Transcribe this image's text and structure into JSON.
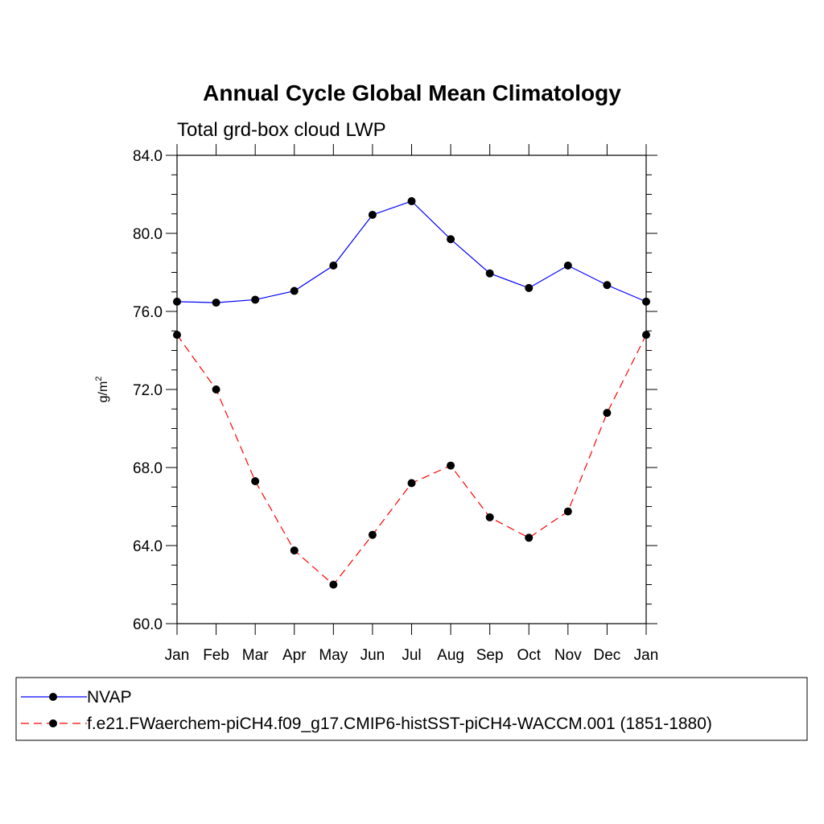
{
  "chart_data": {
    "type": "line",
    "title": "Annual Cycle Global Mean Climatology",
    "subtitle": "Total grd-box cloud LWP",
    "xlabel": "",
    "ylabel": "g/m",
    "ylabel_superscript": "2",
    "categories": [
      "Jan",
      "Feb",
      "Mar",
      "Apr",
      "May",
      "Jun",
      "Jul",
      "Aug",
      "Sep",
      "Oct",
      "Nov",
      "Dec",
      "Jan"
    ],
    "ylim": [
      60,
      84
    ],
    "yticks": [
      "60.0",
      "64.0",
      "68.0",
      "72.0",
      "76.0",
      "80.0",
      "84.0"
    ],
    "ytick_values": [
      60,
      64,
      68,
      72,
      76,
      80,
      84
    ],
    "grid": false,
    "legend_position": "bottom",
    "series": [
      {
        "name": "NVAP",
        "color": "#0000ff",
        "dash": "solid",
        "values": [
          76.5,
          76.45,
          76.6,
          77.05,
          78.35,
          80.95,
          81.65,
          79.7,
          77.95,
          77.2,
          78.35,
          77.35,
          76.5
        ]
      },
      {
        "name": "f.e21.FWaerchem-piCH4.f09_g17.CMIP6-histSST-piCH4-WACCM.001 (1851-1880)",
        "color": "#ff0000",
        "dash": "dashed",
        "values": [
          74.8,
          72.0,
          67.3,
          63.75,
          62.0,
          64.55,
          67.2,
          68.1,
          65.45,
          64.4,
          65.75,
          70.8,
          74.8
        ]
      }
    ]
  }
}
